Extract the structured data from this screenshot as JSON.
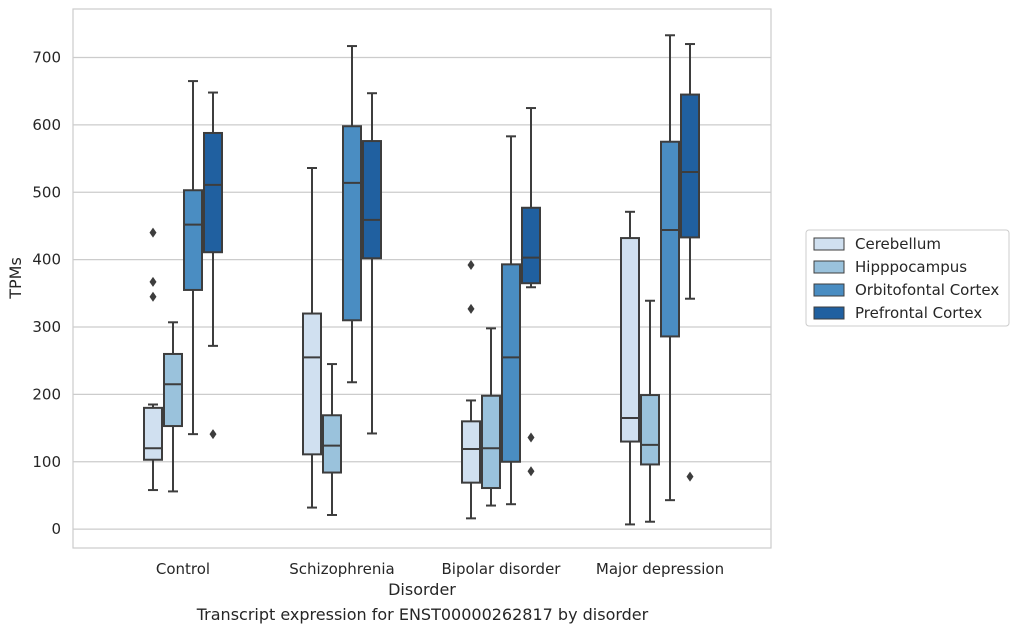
{
  "caption": "Transcript expression for ENST00000262817 by disorder",
  "chart_data": {
    "type": "boxplot",
    "xlabel": "Disorder",
    "ylabel": "TPMs",
    "categories": [
      "Control",
      "Schizophrenia",
      "Bipolar disorder",
      "Major depression"
    ],
    "ylim": [
      -28,
      772
    ],
    "yticks": [
      0,
      100,
      200,
      300,
      400,
      500,
      600,
      700
    ],
    "grid": "horizontal",
    "legend_position": "right",
    "series": [
      {
        "name": "Cerebellum",
        "color": "#d0e0f0",
        "boxes": [
          {
            "whislo": 58,
            "q1": 103,
            "med": 120,
            "q3": 180,
            "whishi": 185,
            "fliers": [
              345,
              367,
              440
            ]
          },
          {
            "whislo": 32,
            "q1": 111,
            "med": 255,
            "q3": 320,
            "whishi": 536,
            "fliers": []
          },
          {
            "whislo": 16,
            "q1": 69,
            "med": 119,
            "q3": 160,
            "whishi": 191,
            "fliers": [
              327,
              392
            ]
          },
          {
            "whislo": 7,
            "q1": 130,
            "med": 165,
            "q3": 432,
            "whishi": 471,
            "fliers": []
          }
        ]
      },
      {
        "name": "Hipppocampus",
        "color": "#9ac2dc",
        "boxes": [
          {
            "whislo": 56,
            "q1": 153,
            "med": 215,
            "q3": 260,
            "whishi": 307,
            "fliers": []
          },
          {
            "whislo": 21,
            "q1": 84,
            "med": 124,
            "q3": 169,
            "whishi": 245,
            "fliers": []
          },
          {
            "whislo": 35,
            "q1": 61,
            "med": 120,
            "q3": 198,
            "whishi": 298,
            "fliers": []
          },
          {
            "whislo": 11,
            "q1": 96,
            "med": 125,
            "q3": 199,
            "whishi": 339,
            "fliers": []
          }
        ]
      },
      {
        "name": "Orbitofontal Cortex",
        "color": "#4a8dc2",
        "boxes": [
          {
            "whislo": 141,
            "q1": 355,
            "med": 452,
            "q3": 503,
            "whishi": 665,
            "fliers": []
          },
          {
            "whislo": 218,
            "q1": 310,
            "med": 514,
            "q3": 598,
            "whishi": 717,
            "fliers": []
          },
          {
            "whislo": 37,
            "q1": 100,
            "med": 255,
            "q3": 393,
            "whishi": 583,
            "fliers": []
          },
          {
            "whislo": 43,
            "q1": 286,
            "med": 444,
            "q3": 575,
            "whishi": 733,
            "fliers": []
          }
        ]
      },
      {
        "name": "Prefrontal Cortex",
        "color": "#2060a0",
        "boxes": [
          {
            "whislo": 272,
            "q1": 411,
            "med": 511,
            "q3": 588,
            "whishi": 648,
            "fliers": [
              141
            ]
          },
          {
            "whislo": 142,
            "q1": 402,
            "med": 459,
            "q3": 576,
            "whishi": 647,
            "fliers": []
          },
          {
            "whislo": 359,
            "q1": 365,
            "med": 403,
            "q3": 477,
            "whishi": 625,
            "fliers": [
              86,
              136
            ]
          },
          {
            "whislo": 342,
            "q1": 433,
            "med": 530,
            "q3": 645,
            "whishi": 720,
            "fliers": [
              78
            ]
          }
        ]
      }
    ]
  }
}
